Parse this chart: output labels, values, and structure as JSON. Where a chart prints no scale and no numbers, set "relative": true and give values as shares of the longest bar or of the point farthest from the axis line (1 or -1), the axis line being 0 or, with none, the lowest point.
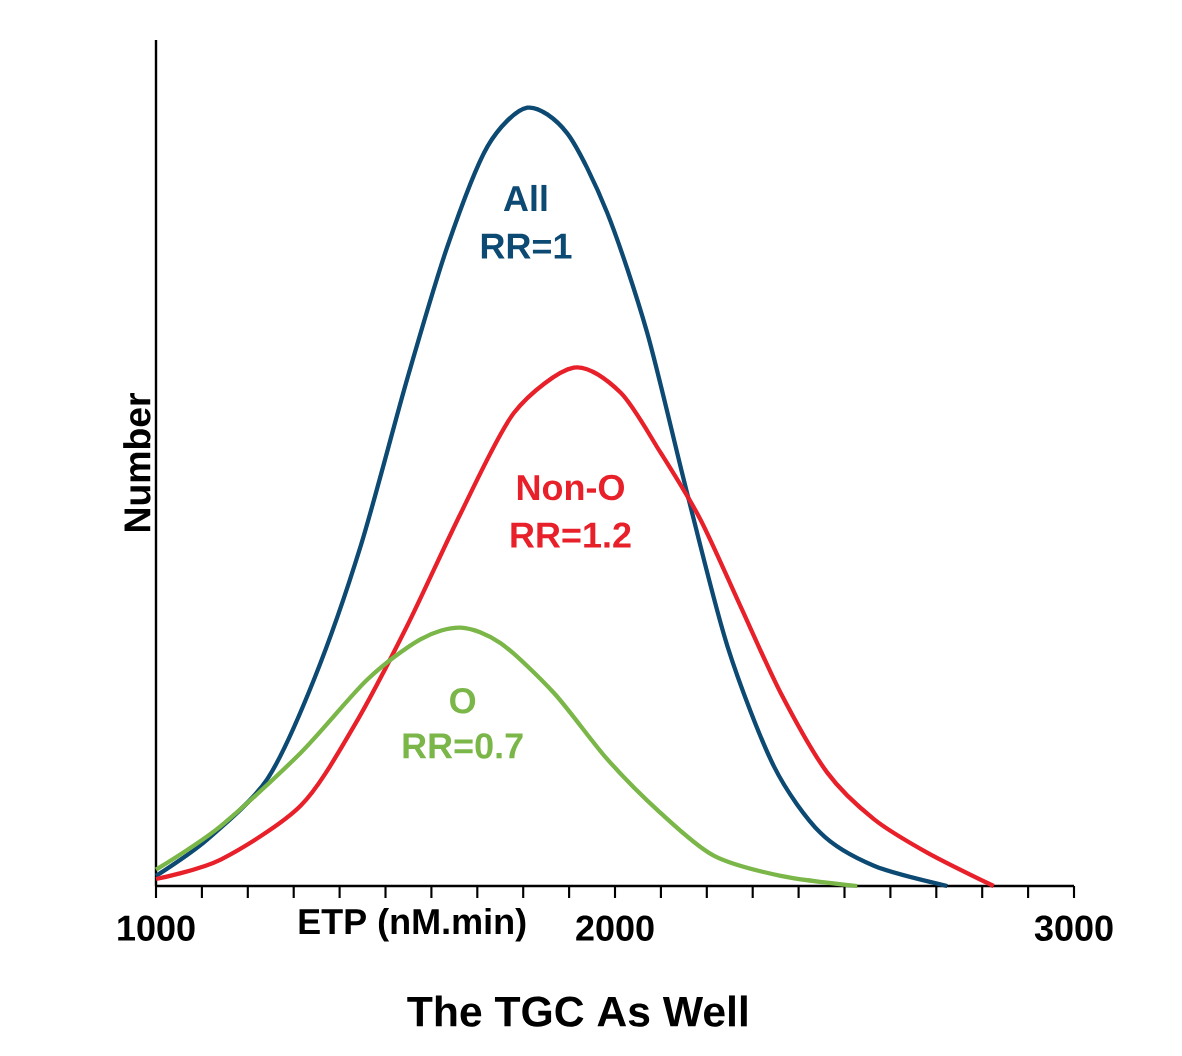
{
  "chart_data": {
    "type": "line",
    "relative": true,
    "xlabel": "The TGC As Well",
    "ylabel": "Number",
    "legend": false,
    "marker": "none",
    "line_style": "solid",
    "grid": false,
    "xlim": [
      1000,
      3000
    ],
    "xticks": [
      1000,
      {
        "value": 1100,
        "label": null
      },
      {
        "value": 1200,
        "label": null
      },
      {
        "value": 1300,
        "label": null
      },
      {
        "value": 1400,
        "label": null
      },
      {
        "value": 1500,
        "label": null
      },
      {
        "value": 1600,
        "label": null
      },
      {
        "value": 1700,
        "label": null
      },
      {
        "value": 1800,
        "label": null
      },
      {
        "value": 1900,
        "label": null
      },
      2000,
      {
        "value": 2100,
        "label": null
      },
      {
        "value": 2200,
        "label": null
      },
      {
        "value": 2300,
        "label": null
      },
      {
        "value": 2400,
        "label": null
      },
      {
        "value": 2500,
        "label": null
      },
      {
        "value": 2600,
        "label": null
      },
      {
        "value": 2700,
        "label": null
      },
      {
        "value": 2800,
        "label": null
      },
      {
        "value": 2900,
        "label": null
      },
      3000
    ],
    "annotations": [
      "RR=1",
      "RR=1.2",
      "RR=0.7",
      "ETP (nM.min)"
    ],
    "series": [
      {
        "name": "All",
        "color": "#0d4a73",
        "x": [
          1000,
          1112,
          1242,
          1344,
          1446,
          1547,
          1635,
          1722,
          1809,
          1896,
          1983,
          2070,
          2157,
          2245,
          2346,
          2448,
          2564,
          2724
        ],
        "values": [
          0.013,
          0.06,
          0.137,
          0.265,
          0.437,
          0.651,
          0.822,
          0.95,
          1,
          0.967,
          0.865,
          0.711,
          0.505,
          0.308,
          0.154,
          0.068,
          0.026,
          0
        ]
      },
      {
        "name": "Non-O",
        "color": "#e8202a",
        "x": [
          1000,
          1141,
          1315,
          1431,
          1547,
          1664,
          1780,
          1910,
          2012,
          2099,
          2186,
          2273,
          2361,
          2462,
          2564,
          2680,
          2825
        ],
        "values": [
          0.009,
          0.034,
          0.103,
          0.205,
          0.334,
          0.479,
          0.608,
          0.666,
          0.634,
          0.557,
          0.471,
          0.36,
          0.248,
          0.146,
          0.086,
          0.043,
          0
        ]
      },
      {
        "name": "O",
        "color": "#7ab648",
        "x": [
          1000,
          1141,
          1315,
          1460,
          1576,
          1664,
          1751,
          1867,
          1983,
          2099,
          2215,
          2361,
          2528
        ],
        "values": [
          0.021,
          0.077,
          0.171,
          0.265,
          0.317,
          0.332,
          0.312,
          0.248,
          0.163,
          0.094,
          0.039,
          0.013,
          0
        ]
      }
    ]
  }
}
